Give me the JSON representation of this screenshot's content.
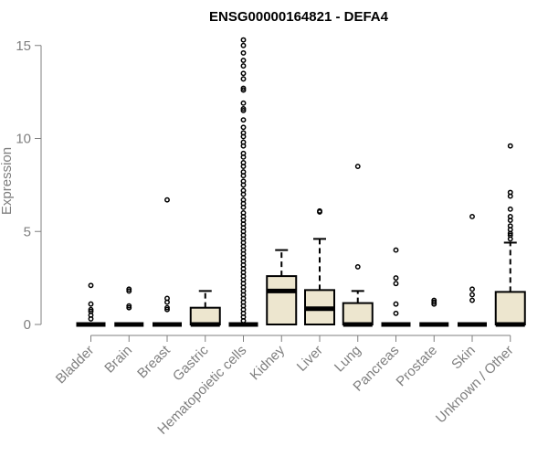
{
  "chart_data": {
    "type": "box",
    "title": "ENSG00000164821 - DEFA4",
    "xlabel": "",
    "ylabel": "Expression",
    "ylim": [
      0,
      15.5
    ],
    "yticks": [
      0,
      5,
      10,
      15
    ],
    "yticklabels": [
      "0",
      "5",
      "10",
      "15"
    ],
    "categories": [
      "Bladder",
      "Brain",
      "Breast",
      "Gastric",
      "Hematopoietic cells",
      "Kidney",
      "Liver",
      "Lung",
      "Pancreas",
      "Prostate",
      "Skin",
      "Unknown / Other"
    ],
    "box_fill": "#ede6cf",
    "box_stroke": "#000000",
    "boxes": [
      {
        "q1": 0,
        "median": 0,
        "q3": 0,
        "whisker_low": 0,
        "whisker_high": 0,
        "outliers": [
          2.1,
          1.1,
          0.8,
          0.7,
          0.5,
          0.3
        ]
      },
      {
        "q1": 0,
        "median": 0,
        "q3": 0,
        "whisker_low": 0,
        "whisker_high": 0,
        "outliers": [
          1.9,
          1.8,
          1.0,
          0.9
        ]
      },
      {
        "q1": 0,
        "median": 0,
        "q3": 0,
        "whisker_low": 0,
        "whisker_high": 0,
        "outliers": [
          6.7,
          1.4,
          1.2,
          0.9,
          0.8
        ]
      },
      {
        "q1": 0,
        "median": 0,
        "q3": 0.9,
        "whisker_low": 0,
        "whisker_high": 1.8,
        "outliers": []
      },
      {
        "q1": 0,
        "median": 0,
        "q3": 0,
        "whisker_low": 0,
        "whisker_high": 0,
        "outliers": [
          15.3,
          15.0,
          14.6,
          14.2,
          13.9,
          13.5,
          13.2,
          12.7,
          12.6,
          11.9,
          11.6,
          11.5,
          11.0,
          10.6,
          10.3,
          10.1,
          9.8,
          9.6,
          9.2,
          9.0,
          8.7,
          8.5,
          8.2,
          8.0,
          7.7,
          7.5,
          7.2,
          7.0,
          6.7,
          6.5,
          6.3,
          6.0,
          5.8,
          5.6,
          5.4,
          5.2,
          5.0,
          4.8,
          4.6,
          4.4,
          4.2,
          4.0,
          3.8,
          3.6,
          3.4,
          3.2,
          3.0,
          2.8,
          2.6,
          2.4,
          2.2,
          2.0,
          1.8,
          1.6,
          1.4,
          1.2,
          1.0,
          0.8,
          0.6,
          0.4,
          0.2
        ]
      },
      {
        "q1": 0,
        "median": 1.8,
        "q3": 2.6,
        "whisker_low": 0,
        "whisker_high": 4.0,
        "outliers": []
      },
      {
        "q1": 0,
        "median": 0.85,
        "q3": 1.85,
        "whisker_low": 0,
        "whisker_high": 4.6,
        "outliers": [
          6.1,
          6.05
        ]
      },
      {
        "q1": 0,
        "median": 0,
        "q3": 1.15,
        "whisker_low": 0,
        "whisker_high": 1.8,
        "outliers": [
          8.5,
          3.1
        ]
      },
      {
        "q1": 0,
        "median": 0,
        "q3": 0,
        "whisker_low": 0,
        "whisker_high": 0,
        "outliers": [
          4.0,
          2.5,
          2.2,
          1.1,
          0.6
        ]
      },
      {
        "q1": 0,
        "median": 0,
        "q3": 0,
        "whisker_low": 0,
        "whisker_high": 0,
        "outliers": [
          1.3,
          1.2,
          1.1
        ]
      },
      {
        "q1": 0,
        "median": 0,
        "q3": 0,
        "whisker_low": 0,
        "whisker_high": 0,
        "outliers": [
          5.8,
          1.9,
          1.6,
          1.3
        ]
      },
      {
        "q1": 0,
        "median": 0,
        "q3": 1.75,
        "whisker_low": 0,
        "whisker_high": 4.4,
        "outliers": [
          9.6,
          7.1,
          6.9,
          6.2,
          5.8,
          5.6,
          5.3,
          5.1,
          4.9,
          4.8,
          4.6
        ]
      }
    ],
    "grid": false,
    "legend": "none"
  }
}
